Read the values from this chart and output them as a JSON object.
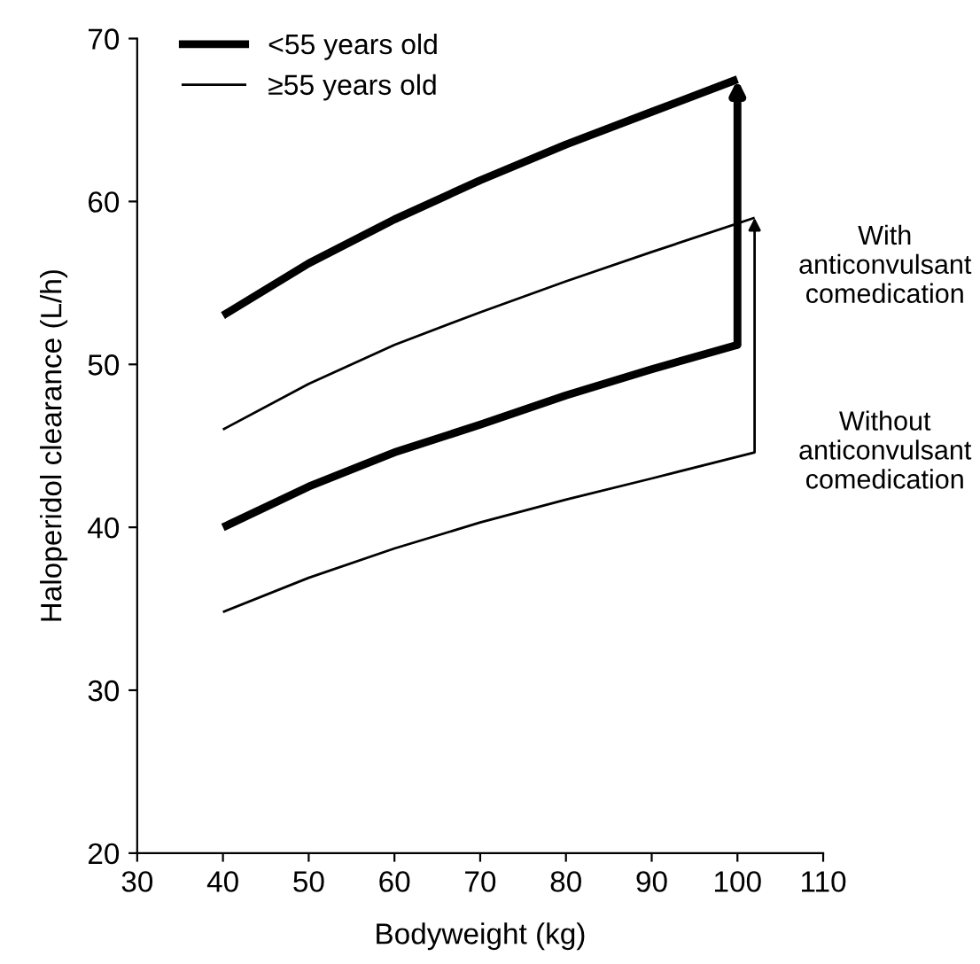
{
  "chart_data": {
    "type": "line",
    "xlabel": "Bodyweight (kg)",
    "ylabel": "Haloperidol clearance (L/h)",
    "xlim": [
      30,
      110
    ],
    "xticks": [
      30,
      40,
      50,
      60,
      70,
      80,
      90,
      100,
      110
    ],
    "ylim": [
      20,
      70
    ],
    "yticks": [
      20,
      30,
      40,
      50,
      60,
      70
    ],
    "legend": "top left",
    "grid": false,
    "marker": "none",
    "line_style": "solid",
    "series": [
      {
        "name": "<55 years old",
        "color": "#000000",
        "x": [
          40,
          50,
          60,
          70,
          80,
          90,
          100
        ],
        "values": [
          53,
          56.2,
          58.9,
          61.3,
          63.5,
          65.5,
          67.5
        ]
      },
      {
        "name": "≥55 years old",
        "color": "#000000",
        "x": [
          40,
          50,
          60,
          70,
          80,
          90,
          102
        ],
        "values": [
          46,
          48.8,
          51.2,
          53.2,
          55.1,
          56.9,
          59
        ]
      },
      {
        "color": "#000000",
        "x": [
          40,
          50,
          60,
          70,
          80,
          90,
          100
        ],
        "values": [
          40,
          42.5,
          44.6,
          46.3,
          48.1,
          49.7,
          51.2
        ]
      },
      {
        "color": "#000000",
        "x": [
          40,
          50,
          60,
          70,
          80,
          90,
          102
        ],
        "values": [
          34.8,
          36.9,
          38.7,
          40.3,
          41.7,
          43.0,
          44.6
        ]
      }
    ],
    "annotations": [
      "With\nanticonvulsant\ncomedication",
      "Without\nanticonvulsant\ncomedication"
    ]
  }
}
